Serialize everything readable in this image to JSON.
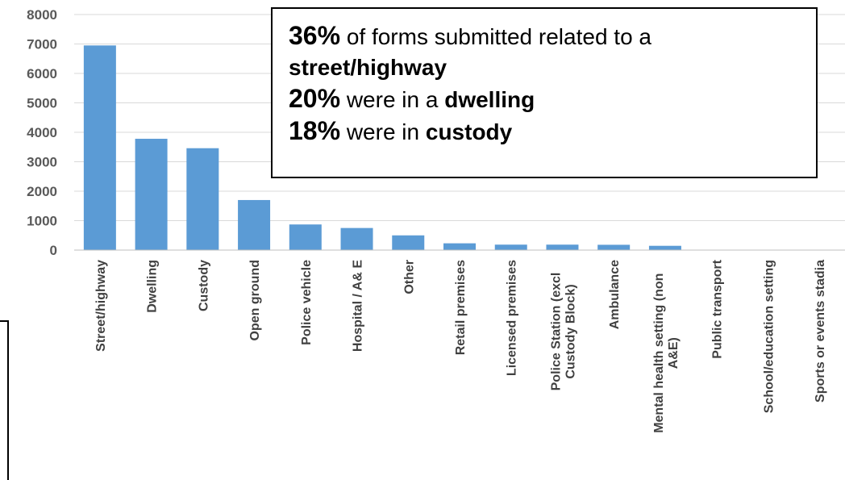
{
  "chart_data": {
    "type": "bar",
    "categories": [
      "Street/highway",
      "Dwelling",
      "Custody",
      "Open ground",
      "Police vehicle",
      "Hospital / A& E",
      "Other",
      "Retail premises",
      "Licensed premises",
      [
        "Police Station (excl",
        "Custody Block)"
      ],
      "Ambulance",
      [
        "Mental health setting (non",
        "A&E)"
      ],
      "Public transport",
      "School/education setting",
      "Sports or events stadia"
    ],
    "values": [
      6950,
      3780,
      3460,
      1700,
      870,
      750,
      500,
      230,
      185,
      185,
      180,
      145,
      0,
      0,
      0
    ],
    "ylim": [
      0,
      8000
    ],
    "yticks": [
      0,
      1000,
      2000,
      3000,
      4000,
      5000,
      6000,
      7000,
      8000
    ],
    "grid": true,
    "title": "",
    "xlabel": "",
    "ylabel": "",
    "colors": {
      "bar": "#5b9bd5",
      "grid": "#d9d9d9",
      "axis": "#bfbfbf"
    }
  },
  "callout": {
    "line1": {
      "bold": "36%",
      "text": " of forms submitted related to a"
    },
    "line2": {
      "bold": "street/highway"
    },
    "line3": {
      "bold": "20%",
      "text": " were in a ",
      "bold2": "dwelling"
    },
    "line4": {
      "bold": "18%",
      "text": " were in ",
      "bold2": "custody"
    }
  }
}
